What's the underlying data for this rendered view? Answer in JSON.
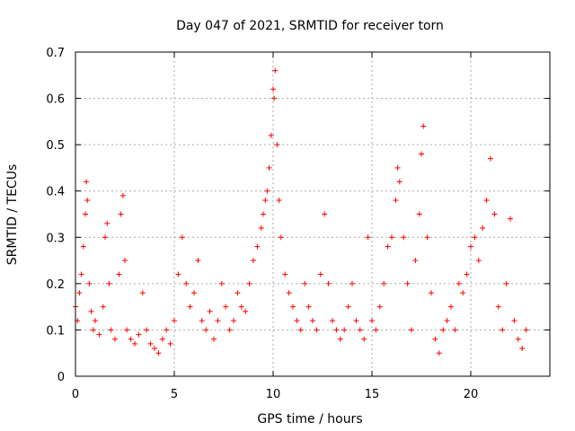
{
  "chart_data": {
    "type": "scatter",
    "title": "Day 047 of 2021, SRMTID for receiver torn",
    "xlabel": "GPS time / hours",
    "ylabel": "SRMTID / TECUs",
    "xlim": [
      0,
      24
    ],
    "ylim": [
      0,
      0.7
    ],
    "xticks": [
      0,
      5,
      10,
      15,
      20
    ],
    "xtick_labels": [
      "0",
      "5",
      "10",
      "15",
      "20"
    ],
    "yticks": [
      0,
      0.1,
      0.2,
      0.3,
      0.4,
      0.5,
      0.6,
      0.7
    ],
    "ytick_labels": [
      "0",
      "0.1",
      "0.2",
      "0.3",
      "0.4",
      "0.5",
      "0.6",
      "0.7"
    ],
    "grid": true,
    "marker": "+",
    "color": "#ff0000",
    "series": [
      {
        "name": "SRMTID",
        "x": [
          0.0,
          0.1,
          0.2,
          0.3,
          0.4,
          0.5,
          0.55,
          0.6,
          0.7,
          0.8,
          0.9,
          1.0,
          1.2,
          1.4,
          1.5,
          1.6,
          1.7,
          1.8,
          2.0,
          2.2,
          2.3,
          2.4,
          2.5,
          2.6,
          2.8,
          3.0,
          3.2,
          3.4,
          3.6,
          3.8,
          4.0,
          4.2,
          4.4,
          4.6,
          4.8,
          5.0,
          5.2,
          5.4,
          5.6,
          5.8,
          6.0,
          6.2,
          6.4,
          6.6,
          6.8,
          7.0,
          7.2,
          7.4,
          7.6,
          7.8,
          8.0,
          8.2,
          8.4,
          8.6,
          8.8,
          9.0,
          9.2,
          9.4,
          9.5,
          9.6,
          9.7,
          9.8,
          9.9,
          10.0,
          10.05,
          10.1,
          10.2,
          10.3,
          10.4,
          10.6,
          10.8,
          11.0,
          11.2,
          11.4,
          11.6,
          11.8,
          12.0,
          12.2,
          12.4,
          12.6,
          12.8,
          13.0,
          13.2,
          13.4,
          13.6,
          13.8,
          14.0,
          14.2,
          14.4,
          14.6,
          14.8,
          15.0,
          15.2,
          15.4,
          15.6,
          15.8,
          16.0,
          16.2,
          16.3,
          16.4,
          16.6,
          16.8,
          17.0,
          17.2,
          17.4,
          17.5,
          17.6,
          17.8,
          18.0,
          18.2,
          18.4,
          18.6,
          18.8,
          19.0,
          19.2,
          19.4,
          19.6,
          19.8,
          20.0,
          20.2,
          20.4,
          20.6,
          20.8,
          21.0,
          21.2,
          21.4,
          21.6,
          21.8,
          22.0,
          22.2,
          22.4,
          22.6,
          22.8
        ],
        "y": [
          0.15,
          0.12,
          0.18,
          0.22,
          0.28,
          0.35,
          0.42,
          0.38,
          0.2,
          0.14,
          0.1,
          0.12,
          0.09,
          0.15,
          0.3,
          0.33,
          0.2,
          0.1,
          0.08,
          0.22,
          0.35,
          0.39,
          0.25,
          0.1,
          0.08,
          0.07,
          0.09,
          0.18,
          0.1,
          0.07,
          0.06,
          0.05,
          0.08,
          0.1,
          0.07,
          0.12,
          0.22,
          0.3,
          0.2,
          0.15,
          0.18,
          0.25,
          0.12,
          0.1,
          0.14,
          0.08,
          0.12,
          0.2,
          0.15,
          0.1,
          0.12,
          0.18,
          0.15,
          0.14,
          0.2,
          0.25,
          0.28,
          0.32,
          0.35,
          0.38,
          0.4,
          0.45,
          0.52,
          0.62,
          0.6,
          0.66,
          0.5,
          0.38,
          0.3,
          0.22,
          0.18,
          0.15,
          0.12,
          0.1,
          0.2,
          0.15,
          0.12,
          0.1,
          0.22,
          0.35,
          0.2,
          0.12,
          0.1,
          0.08,
          0.1,
          0.15,
          0.2,
          0.12,
          0.1,
          0.08,
          0.3,
          0.12,
          0.1,
          0.15,
          0.2,
          0.28,
          0.3,
          0.38,
          0.45,
          0.42,
          0.3,
          0.2,
          0.1,
          0.25,
          0.35,
          0.48,
          0.54,
          0.3,
          0.18,
          0.08,
          0.05,
          0.1,
          0.12,
          0.15,
          0.1,
          0.2,
          0.18,
          0.22,
          0.28,
          0.3,
          0.25,
          0.32,
          0.38,
          0.47,
          0.35,
          0.15,
          0.1,
          0.2,
          0.34,
          0.12,
          0.08,
          0.06,
          0.1
        ]
      }
    ]
  }
}
